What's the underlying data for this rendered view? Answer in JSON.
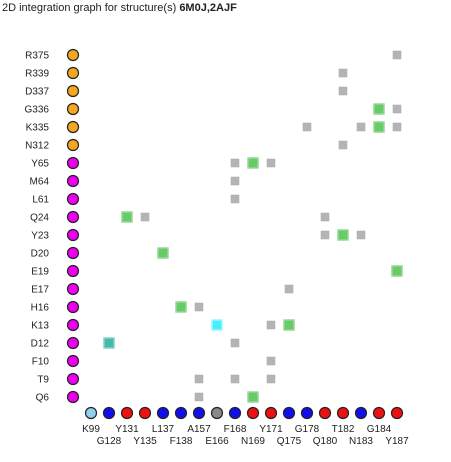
{
  "title": {
    "prefix": "2D integration graph for structure(s)",
    "structures": "6M0J,2AJF"
  },
  "colors": {
    "orange": "#f5a623",
    "magenta": "#ee00ee",
    "blue": "#1010ee",
    "red": "#ee1111",
    "lightblue": "#8fd0ec",
    "gray": "#888888",
    "cell_gray": "#b4b4b4",
    "cell_green": "#66cc66",
    "cell_cyan": "#44f0ff",
    "cell_teal": "#44bbaa"
  },
  "rows": [
    {
      "label": "R375",
      "color": "orange"
    },
    {
      "label": "R339",
      "color": "orange"
    },
    {
      "label": "D337",
      "color": "orange"
    },
    {
      "label": "G336",
      "color": "orange"
    },
    {
      "label": "K335",
      "color": "orange"
    },
    {
      "label": "N312",
      "color": "orange"
    },
    {
      "label": "Y65",
      "color": "magenta"
    },
    {
      "label": "M64",
      "color": "magenta"
    },
    {
      "label": "L61",
      "color": "magenta"
    },
    {
      "label": "Q24",
      "color": "magenta"
    },
    {
      "label": "Y23",
      "color": "magenta"
    },
    {
      "label": "D20",
      "color": "magenta"
    },
    {
      "label": "E19",
      "color": "magenta"
    },
    {
      "label": "E17",
      "color": "magenta"
    },
    {
      "label": "H16",
      "color": "magenta"
    },
    {
      "label": "K13",
      "color": "magenta"
    },
    {
      "label": "D12",
      "color": "magenta"
    },
    {
      "label": "F10",
      "color": "magenta"
    },
    {
      "label": "T9",
      "color": "magenta"
    },
    {
      "label": "Q6",
      "color": "magenta"
    }
  ],
  "columns": [
    {
      "label": "K99",
      "color": "lightblue"
    },
    {
      "label": "G128",
      "color": "blue"
    },
    {
      "label": "Y131",
      "color": "red"
    },
    {
      "label": "Y135",
      "color": "red"
    },
    {
      "label": "L137",
      "color": "blue"
    },
    {
      "label": "F138",
      "color": "blue"
    },
    {
      "label": "A157",
      "color": "blue"
    },
    {
      "label": "E166",
      "color": "gray"
    },
    {
      "label": "F168",
      "color": "blue"
    },
    {
      "label": "N169",
      "color": "red"
    },
    {
      "label": "Y171",
      "color": "red"
    },
    {
      "label": "Q175",
      "color": "blue"
    },
    {
      "label": "G178",
      "color": "blue"
    },
    {
      "label": "Q180",
      "color": "red"
    },
    {
      "label": "T182",
      "color": "red"
    },
    {
      "label": "N183",
      "color": "blue"
    },
    {
      "label": "G184",
      "color": "red"
    },
    {
      "label": "Y187",
      "color": "red"
    }
  ],
  "cells": [
    {
      "row": "R375",
      "col": "Y187",
      "type": "gray"
    },
    {
      "row": "R339",
      "col": "T182",
      "type": "gray"
    },
    {
      "row": "D337",
      "col": "T182",
      "type": "gray"
    },
    {
      "row": "G336",
      "col": "G184",
      "type": "green"
    },
    {
      "row": "G336",
      "col": "Y187",
      "type": "gray"
    },
    {
      "row": "K335",
      "col": "G178",
      "type": "gray"
    },
    {
      "row": "K335",
      "col": "N183",
      "type": "gray"
    },
    {
      "row": "K335",
      "col": "G184",
      "type": "green"
    },
    {
      "row": "K335",
      "col": "Y187",
      "type": "gray"
    },
    {
      "row": "N312",
      "col": "T182",
      "type": "gray"
    },
    {
      "row": "Y65",
      "col": "F168",
      "type": "gray"
    },
    {
      "row": "Y65",
      "col": "N169",
      "type": "green"
    },
    {
      "row": "Y65",
      "col": "Y171",
      "type": "gray"
    },
    {
      "row": "M64",
      "col": "F168",
      "type": "gray"
    },
    {
      "row": "L61",
      "col": "F168",
      "type": "gray"
    },
    {
      "row": "Q24",
      "col": "Y131",
      "type": "green"
    },
    {
      "row": "Q24",
      "col": "Y135",
      "type": "gray"
    },
    {
      "row": "Q24",
      "col": "Q180",
      "type": "gray"
    },
    {
      "row": "Y23",
      "col": "Q180",
      "type": "gray"
    },
    {
      "row": "Y23",
      "col": "T182",
      "type": "green"
    },
    {
      "row": "Y23",
      "col": "N183",
      "type": "gray"
    },
    {
      "row": "D20",
      "col": "L137",
      "type": "green"
    },
    {
      "row": "E19",
      "col": "Y187",
      "type": "green"
    },
    {
      "row": "E17",
      "col": "Q175",
      "type": "gray"
    },
    {
      "row": "H16",
      "col": "F138",
      "type": "green"
    },
    {
      "row": "H16",
      "col": "A157",
      "type": "gray"
    },
    {
      "row": "K13",
      "col": "E166",
      "type": "cyan"
    },
    {
      "row": "K13",
      "col": "Y171",
      "type": "gray"
    },
    {
      "row": "K13",
      "col": "Q175",
      "type": "green"
    },
    {
      "row": "D12",
      "col": "G128",
      "type": "teal"
    },
    {
      "row": "D12",
      "col": "F168",
      "type": "gray"
    },
    {
      "row": "F10",
      "col": "Y171",
      "type": "gray"
    },
    {
      "row": "T9",
      "col": "F168",
      "type": "gray"
    },
    {
      "row": "T9",
      "col": "A157",
      "type": "gray"
    },
    {
      "row": "T9",
      "col": "Y171",
      "type": "gray"
    },
    {
      "row": "Q6",
      "col": "A157",
      "type": "gray"
    },
    {
      "row": "Q6",
      "col": "N169",
      "type": "green"
    }
  ]
}
